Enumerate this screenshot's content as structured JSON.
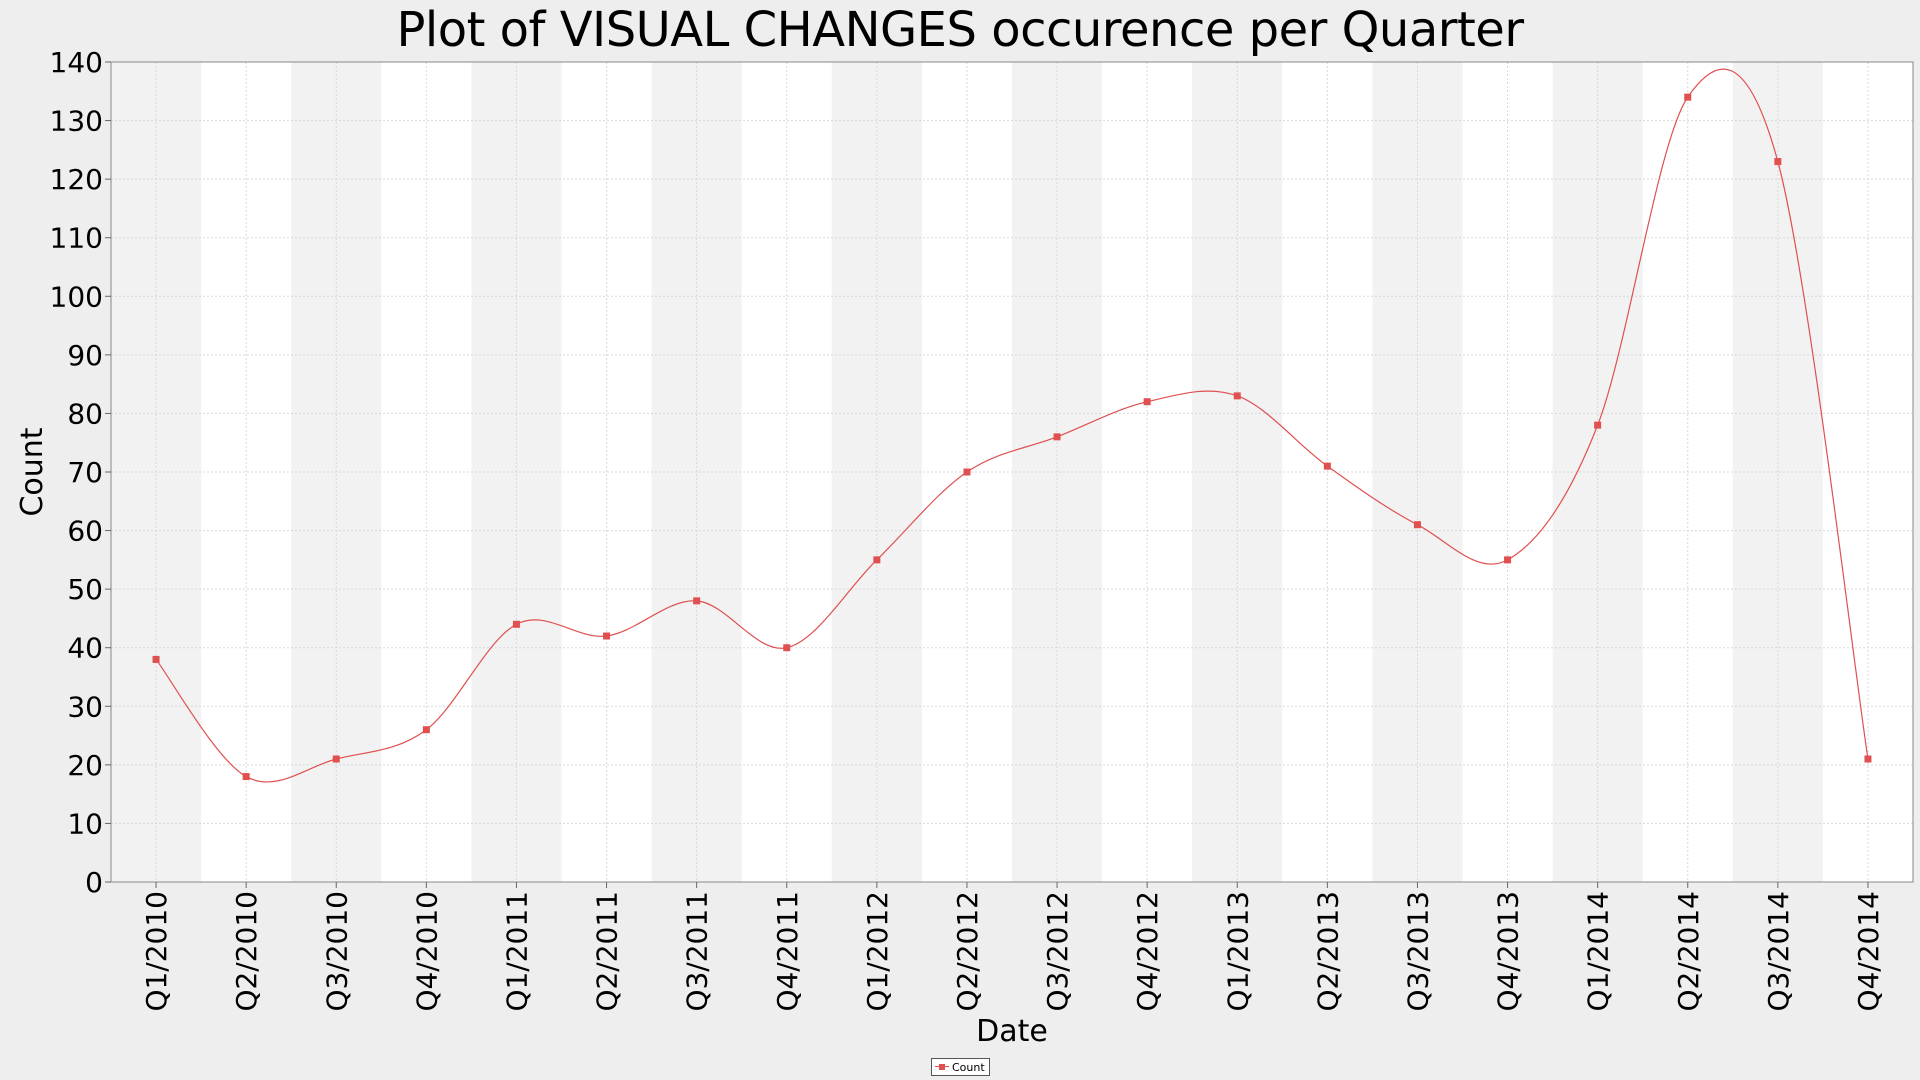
{
  "title": "Plot of VISUAL CHANGES occurence per Quarter",
  "colors": {
    "background": "#eeeeee",
    "band_dark": "#f2f2f2",
    "band_light": "#ffffff",
    "series": "#e05050",
    "grid": "#d8d8d8"
  },
  "chart_data": {
    "type": "line",
    "title": "Plot of VISUAL CHANGES occurence per Quarter",
    "xlabel": "Date",
    "ylabel": "Count",
    "ylim": [
      0,
      140
    ],
    "yticks": [
      0,
      10,
      20,
      30,
      40,
      50,
      60,
      70,
      80,
      90,
      100,
      110,
      120,
      130,
      140
    ],
    "grid": true,
    "legend": "bottom-center",
    "smooth": true,
    "categories": [
      "Q1/2010",
      "Q2/2010",
      "Q3/2010",
      "Q4/2010",
      "Q1/2011",
      "Q2/2011",
      "Q3/2011",
      "Q4/2011",
      "Q1/2012",
      "Q2/2012",
      "Q3/2012",
      "Q4/2012",
      "Q1/2013",
      "Q2/2013",
      "Q3/2013",
      "Q4/2013",
      "Q1/2014",
      "Q2/2014",
      "Q3/2014",
      "Q4/2014"
    ],
    "series": [
      {
        "name": "Count",
        "values": [
          38,
          18,
          21,
          26,
          44,
          42,
          48,
          40,
          55,
          70,
          76,
          82,
          83,
          71,
          61,
          55,
          78,
          134,
          123,
          21
        ]
      }
    ]
  }
}
